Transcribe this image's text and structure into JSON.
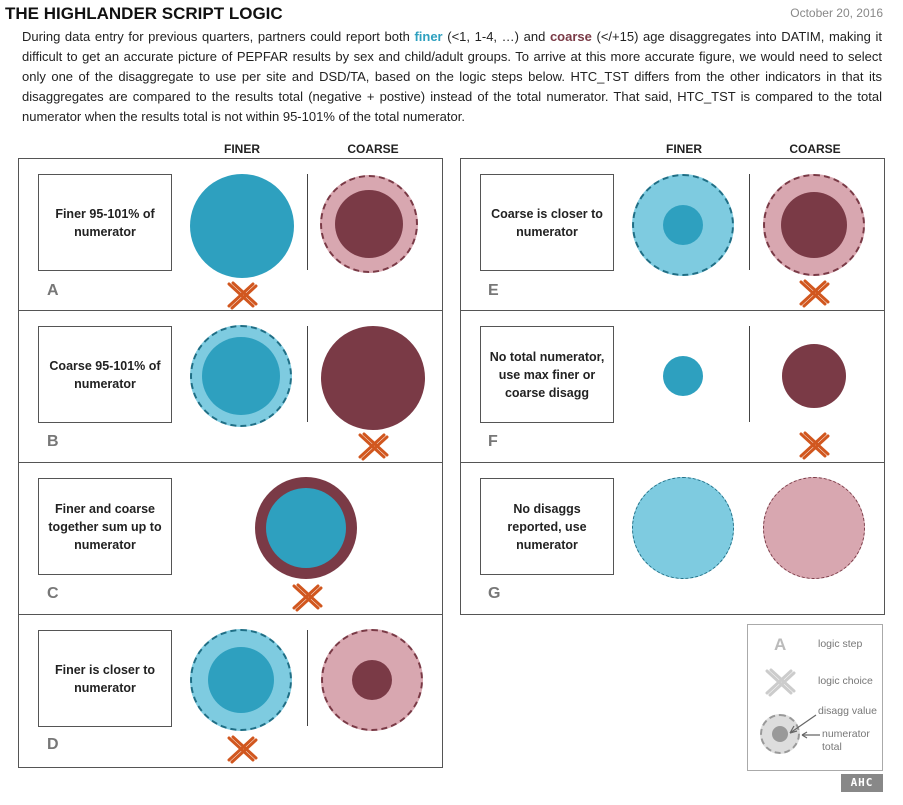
{
  "header": {
    "title": "THE HIGHLANDER SCRIPT LOGIC",
    "date": "October 20, 2016"
  },
  "intro": {
    "part1": "During data entry for previous quarters, partners could report both ",
    "finer": "finer",
    "part2": " (<1, 1-4, …) and ",
    "coarse": "coarse",
    "part3": " (</+15) age disaggregates into DATIM, making it difficult to get an accurate picture of PEPFAR results by sex and child/adult groups. To arrive at this more accurate figure, we would need to select only one of the disaggregate to use per site and DSD/TA, based on the logic steps below. HTC_TST differs from the other indicators in that its disaggregates are compared to the results total (negative + postive) instead of the total numerator. That said, HTC_TST is compared to the total numerator when the results total is not within 95-101% of the total numerator."
  },
  "columns": {
    "finer": "FINER",
    "coarse": "COARSE"
  },
  "colors": {
    "finer_dark": "#2ea0bf",
    "finer_light": "#7ecbe0",
    "coarse_dark": "#7a3a46",
    "coarse_light": "#d8a7b0",
    "choice_x": "#d1571f"
  },
  "steps": [
    {
      "letter": "A",
      "text": "Finer 95-101% of numerator",
      "choice": "finer"
    },
    {
      "letter": "B",
      "text": "Coarse 95-101% of numerator",
      "choice": "coarse"
    },
    {
      "letter": "C",
      "text": "Finer and coarse together sum up to numerator",
      "choice": "both"
    },
    {
      "letter": "D",
      "text": "Finer is closer to numerator",
      "choice": "finer"
    },
    {
      "letter": "E",
      "text": "Coarse is closer to numerator",
      "choice": "coarse"
    },
    {
      "letter": "F",
      "text": "No total numerator, use max finer or coarse disagg",
      "choice": "coarse"
    },
    {
      "letter": "G",
      "text": "No disaggs reported, use numerator",
      "choice": "none"
    }
  ],
  "legend": {
    "letter": "A",
    "logic_step": "logic step",
    "logic_choice": "logic choice",
    "disagg_value": "disagg value",
    "numerator_total": "numerator total",
    "icons": [
      "logic-step-letter",
      "x-choice-icon",
      "circle-disagg-icon"
    ]
  },
  "logo": "AHC"
}
